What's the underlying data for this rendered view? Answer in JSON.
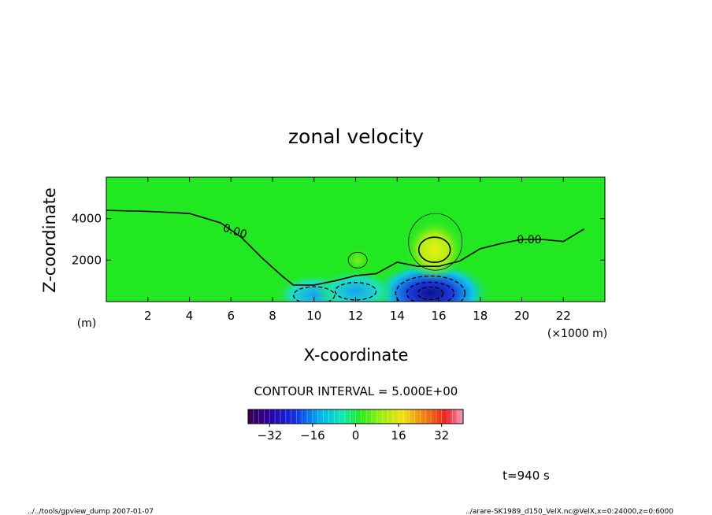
{
  "chart_data": {
    "type": "heatmap",
    "title": "zonal velocity",
    "xlabel": "X-coordinate",
    "ylabel": "Z-coordinate",
    "x_units_note": "(×1000 m)",
    "y_units_note": "(m)",
    "xlim": [
      0,
      24
    ],
    "ylim": [
      0,
      6000
    ],
    "x_ticks": [
      2,
      4,
      6,
      8,
      10,
      12,
      14,
      16,
      18,
      20,
      22
    ],
    "y_ticks": [
      2000,
      4000
    ],
    "x_tick_labels": [
      "2",
      "4",
      "6",
      "8",
      "10",
      "12",
      "14",
      "16",
      "18",
      "20",
      "22"
    ],
    "y_tick_labels": [
      "2000",
      "4000"
    ],
    "zero_contour_label_left": "0.00",
    "zero_contour_label_right": "0.00",
    "zero_contour": [
      [
        0,
        4400
      ],
      [
        2,
        4350
      ],
      [
        4,
        4250
      ],
      [
        5.5,
        3800
      ],
      [
        6.5,
        3100
      ],
      [
        7.5,
        2100
      ],
      [
        8.5,
        1200
      ],
      [
        9,
        800
      ],
      [
        10,
        800
      ],
      [
        11,
        1000
      ],
      [
        12,
        1250
      ],
      [
        13,
        1350
      ],
      [
        14,
        1900
      ],
      [
        15,
        1700
      ],
      [
        16,
        1700
      ],
      [
        17,
        1950
      ],
      [
        18,
        2550
      ],
      [
        19,
        2800
      ],
      [
        20,
        3000
      ],
      [
        21,
        3000
      ],
      [
        22,
        2900
      ],
      [
        23,
        3500
      ]
    ],
    "positive_cores": [
      {
        "x": 15.8,
        "z": 2500,
        "peak_value": 12,
        "description": "positive core above surface"
      },
      {
        "x": 12.1,
        "z": 2000,
        "peak_value": 5
      }
    ],
    "negative_cores": [
      {
        "x": 15.6,
        "z": 400,
        "peak_value": -35
      },
      {
        "x": 10.0,
        "z": 300,
        "peak_value": -20
      },
      {
        "x": 12.0,
        "z": 500,
        "peak_value": -15
      }
    ],
    "contour_interval_text": "CONTOUR INTERVAL = 5.000E+00",
    "colorbar": {
      "range": [
        -40,
        40
      ],
      "ticks": [
        -32,
        -16,
        0,
        16,
        32
      ],
      "tick_labels": [
        "−32",
        "−16",
        "0",
        "16",
        "32"
      ]
    },
    "time_label": "t=940 s"
  },
  "footer": {
    "left": "../../tools/gpview_dump  2007-01-07",
    "right": "../arare-SK1989_d150_VelX.nc@VelX,x=0:24000,z=0:6000"
  },
  "colors": {
    "background_field": "#22e822",
    "negative_core": "#1a1ab8",
    "positive_core": "#e0ee10"
  }
}
